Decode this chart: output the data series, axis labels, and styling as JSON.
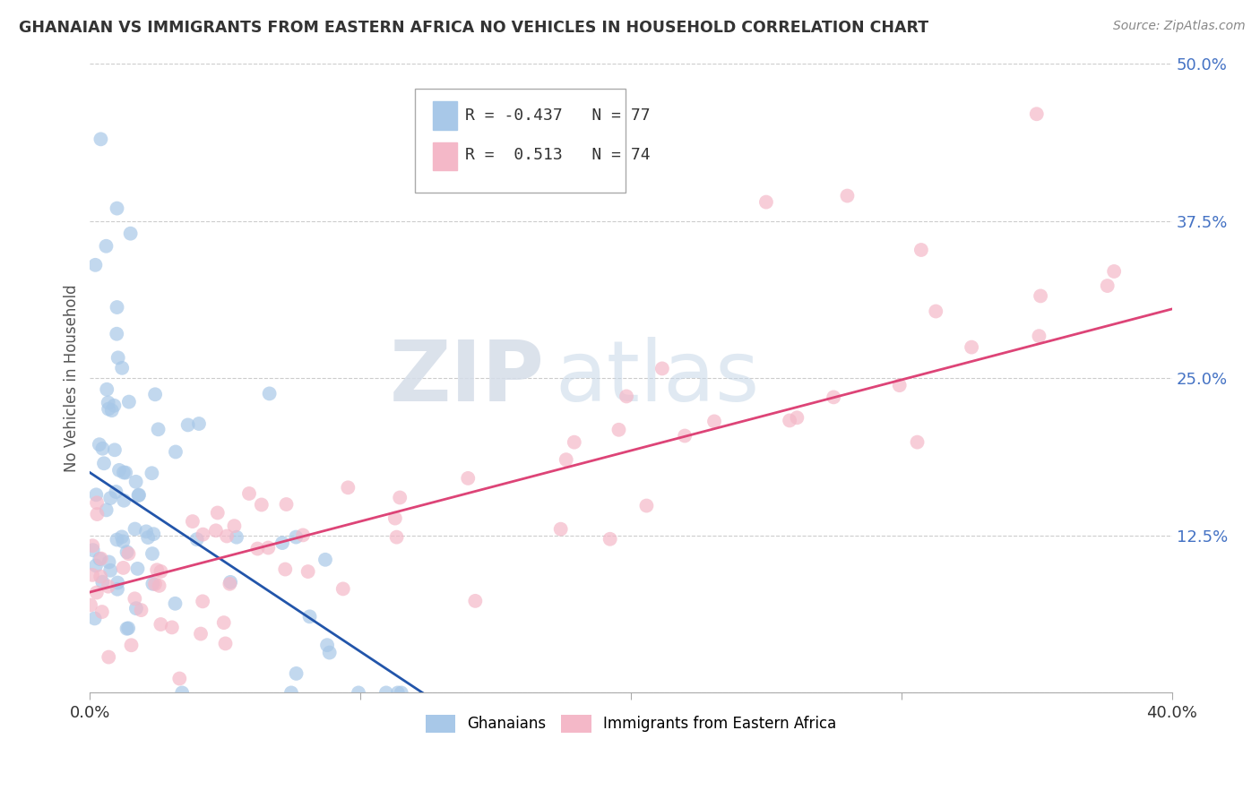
{
  "title": "GHANAIAN VS IMMIGRANTS FROM EASTERN AFRICA NO VEHICLES IN HOUSEHOLD CORRELATION CHART",
  "source": "Source: ZipAtlas.com",
  "ylabel": "No Vehicles in Household",
  "xlim": [
    0.0,
    0.4
  ],
  "ylim": [
    0.0,
    0.5
  ],
  "blue_R": -0.437,
  "blue_N": 77,
  "pink_R": 0.513,
  "pink_N": 74,
  "blue_color": "#a8c8e8",
  "pink_color": "#f4b8c8",
  "blue_line_color": "#2255aa",
  "pink_line_color": "#dd4477",
  "watermark_zip": "ZIP",
  "watermark_atlas": "atlas",
  "legend_label_blue": "Ghanaians",
  "legend_label_pink": "Immigrants from Eastern Africa",
  "blue_line_x0": 0.0,
  "blue_line_y0": 0.175,
  "blue_line_x1": 0.13,
  "blue_line_y1": -0.01,
  "pink_line_x0": 0.0,
  "pink_line_y0": 0.08,
  "pink_line_x1": 0.4,
  "pink_line_y1": 0.305
}
